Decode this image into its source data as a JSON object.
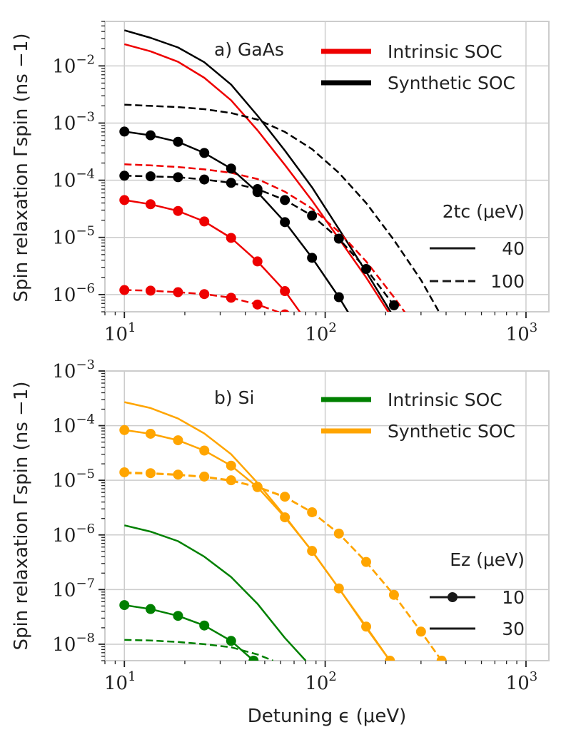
{
  "chart_data": [
    {
      "type": "line",
      "panel_label": "a) GaAs",
      "xlabel": "Detuning ϵ (μeV)",
      "ylabel": "Spin relaxation Γspin (ns −1)",
      "xscale": "log",
      "yscale": "log",
      "xlim": [
        8,
        1300
      ],
      "ylim": [
        5e-07,
        0.06
      ],
      "grid": true,
      "xticks": [
        10,
        100,
        1000
      ],
      "xtick_labels": [
        {
          "base": "10",
          "exp": "1"
        },
        {
          "base": "10",
          "exp": "2"
        },
        {
          "base": "10",
          "exp": "3"
        }
      ],
      "yticks": [
        1e-06,
        1e-05,
        0.0001,
        0.001,
        0.01
      ],
      "ytick_labels": [
        {
          "base": "10",
          "exp": "−6"
        },
        {
          "base": "10",
          "exp": "−5"
        },
        {
          "base": "10",
          "exp": "−4"
        },
        {
          "base": "10",
          "exp": "−3"
        },
        {
          "base": "10",
          "exp": "−2"
        }
      ],
      "legend_color": {
        "placement": "top-right",
        "entries": [
          {
            "label": "Intrinsic SOC",
            "color": "#ee0000"
          },
          {
            "label": "Synthetic SOC",
            "color": "#000000"
          }
        ]
      },
      "legend_style": {
        "placement": "center-right",
        "title": "2tc (μeV)",
        "entries": [
          {
            "label": "40",
            "style": "solid",
            "marker": false
          },
          {
            "label": "100",
            "style": "dashed",
            "marker": false
          }
        ]
      },
      "series": [
        {
          "color": "#000000",
          "style": "solid",
          "marker": false,
          "lw": 2.5,
          "x": [
            10,
            13.5,
            18.5,
            25,
            34,
            46,
            63,
            86,
            117,
            160,
            220
          ],
          "y": [
            0.042,
            0.031,
            0.021,
            0.0116,
            0.0047,
            0.00135,
            0.00033,
            7.5e-05,
            1.4e-05,
            2.5e-06,
            4e-07
          ]
        },
        {
          "color": "#ee0000",
          "style": "solid",
          "marker": false,
          "lw": 2.5,
          "x": [
            10,
            13.5,
            18.5,
            25,
            34,
            46,
            63,
            86,
            117,
            160,
            220
          ],
          "y": [
            0.024,
            0.018,
            0.0118,
            0.0062,
            0.0025,
            0.00075,
            0.000185,
            4.4e-05,
            9.5e-06,
            2e-06,
            3.5e-07
          ]
        },
        {
          "color": "#000000",
          "style": "dashed",
          "marker": false,
          "lw": 2.5,
          "x": [
            10,
            13.5,
            18.5,
            25,
            34,
            46,
            63,
            86,
            117,
            160,
            220,
            300,
            400
          ],
          "y": [
            0.0021,
            0.002,
            0.0019,
            0.00175,
            0.0015,
            0.00115,
            0.0007,
            0.00035,
            0.000135,
            4e-05,
            9e-06,
            1.8e-06,
            3e-07
          ]
        },
        {
          "color": "#ee0000",
          "style": "dashed",
          "marker": false,
          "lw": 2.5,
          "x": [
            10,
            13.5,
            18.5,
            25,
            34,
            46,
            63,
            86,
            117,
            160,
            220,
            300
          ],
          "y": [
            0.00019,
            0.000182,
            0.00017,
            0.000155,
            0.000135,
            0.000105,
            6.3e-05,
            3.2e-05,
            1.25e-05,
            3.8e-06,
            9e-07,
            2e-07
          ]
        },
        {
          "color": "#000000",
          "style": "solid",
          "marker": true,
          "lw": 2.5,
          "x": [
            10,
            13.5,
            18.5,
            25,
            34,
            46,
            63,
            86,
            117,
            160
          ],
          "y": [
            0.00071,
            0.00061,
            0.00047,
            0.0003,
            0.00016,
            6.2e-05,
            1.85e-05,
            4.4e-06,
            9e-07,
            1.5e-07
          ]
        },
        {
          "color": "#000000",
          "style": "dashed",
          "marker": true,
          "lw": 2.5,
          "x": [
            10,
            13.5,
            18.5,
            25,
            34,
            46,
            63,
            86,
            117,
            160,
            220
          ],
          "y": [
            0.00012,
            0.000117,
            0.000113,
            0.000103,
            9e-05,
            7e-05,
            4.5e-05,
            2.4e-05,
            9.5e-06,
            2.8e-06,
            6.5e-07
          ]
        },
        {
          "color": "#ee0000",
          "style": "solid",
          "marker": true,
          "lw": 2.5,
          "x": [
            10,
            13.5,
            18.5,
            25,
            34,
            46,
            63,
            86
          ],
          "y": [
            4.5e-05,
            3.8e-05,
            2.9e-05,
            1.9e-05,
            9.8e-06,
            3.8e-06,
            1.15e-06,
            2.5e-07
          ]
        },
        {
          "color": "#ee0000",
          "style": "dashed",
          "marker": true,
          "lw": 2.5,
          "x": [
            10,
            13.5,
            18.5,
            25,
            34,
            46,
            63,
            86
          ],
          "y": [
            1.2e-06,
            1.17e-06,
            1.1e-06,
            1.02e-06,
            8.8e-07,
            6.7e-07,
            4.5e-07,
            2.5e-07
          ]
        }
      ]
    },
    {
      "type": "line",
      "panel_label": "b) Si",
      "xlabel": "Detuning ϵ (μeV)",
      "ylabel": "Spin relaxation Γspin (ns −1)",
      "xscale": "log",
      "yscale": "log",
      "xlim": [
        8,
        1300
      ],
      "ylim": [
        5e-09,
        0.001
      ],
      "grid": true,
      "xticks": [
        10,
        100,
        1000
      ],
      "xtick_labels": [
        {
          "base": "10",
          "exp": "1"
        },
        {
          "base": "10",
          "exp": "2"
        },
        {
          "base": "10",
          "exp": "3"
        }
      ],
      "yticks": [
        1e-08,
        1e-07,
        1e-06,
        1e-05,
        0.0001,
        0.001
      ],
      "ytick_labels": [
        {
          "base": "10",
          "exp": "−8"
        },
        {
          "base": "10",
          "exp": "−7"
        },
        {
          "base": "10",
          "exp": "−6"
        },
        {
          "base": "10",
          "exp": "−5"
        },
        {
          "base": "10",
          "exp": "−4"
        },
        {
          "base": "10",
          "exp": "−3"
        }
      ],
      "legend_color": {
        "placement": "top-right",
        "entries": [
          {
            "label": "Intrinsic SOC",
            "color": "#008000"
          },
          {
            "label": "Synthetic SOC",
            "color": "#ffa500"
          }
        ]
      },
      "legend_style": {
        "placement": "center-right",
        "title": "Ez (μeV)",
        "entries": [
          {
            "label": "10",
            "style": "solid",
            "marker": true
          },
          {
            "label": "30",
            "style": "solid",
            "marker": false
          }
        ]
      },
      "series": [
        {
          "color": "#ffa500",
          "style": "solid",
          "marker": false,
          "lw": 2.5,
          "x": [
            10,
            13.5,
            18.5,
            25,
            34,
            46,
            63,
            86,
            117,
            160,
            210
          ],
          "y": [
            0.00027,
            0.00021,
            0.000135,
            7.2e-05,
            3e-05,
            9e-06,
            2.2e-06,
            5e-07,
            1.05e-07,
            2e-08,
            5e-09
          ]
        },
        {
          "color": "#ffa500",
          "style": "solid",
          "marker": true,
          "lw": 2.5,
          "x": [
            10,
            13.5,
            18.5,
            25,
            34,
            46,
            63,
            86,
            117,
            160,
            210
          ],
          "y": [
            8.3e-05,
            7.1e-05,
            5.4e-05,
            3.5e-05,
            1.85e-05,
            7.5e-06,
            2.1e-06,
            5.1e-07,
            1.05e-07,
            2.1e-08,
            5e-09
          ]
        },
        {
          "color": "#ffa500",
          "style": "dashed",
          "marker": false,
          "lw": 2.5,
          "x": [
            10,
            13.5,
            18.5,
            25,
            34,
            46,
            63,
            86,
            117,
            160,
            220,
            300,
            380
          ],
          "y": [
            1.35e-05,
            1.32e-05,
            1.25e-05,
            1.15e-05,
            9.8e-06,
            7.5e-06,
            4.9e-06,
            2.6e-06,
            1.05e-06,
            3.2e-07,
            8e-08,
            1.7e-08,
            5e-09
          ]
        },
        {
          "color": "#ffa500",
          "style": "dashed",
          "marker": true,
          "lw": 2.5,
          "x": [
            10,
            13.5,
            18.5,
            25,
            34,
            46,
            63,
            86,
            117,
            160,
            220,
            300,
            380
          ],
          "y": [
            1.4e-05,
            1.35e-05,
            1.27e-05,
            1.17e-05,
            1e-05,
            7.6e-06,
            5e-06,
            2.6e-06,
            1.06e-06,
            3.2e-07,
            8e-08,
            1.7e-08,
            5e-09
          ]
        },
        {
          "color": "#008000",
          "style": "solid",
          "marker": false,
          "lw": 2.5,
          "x": [
            10,
            13.5,
            18.5,
            25,
            34,
            46,
            63,
            80
          ],
          "y": [
            1.5e-06,
            1.15e-06,
            7.7e-07,
            4e-07,
            1.7e-07,
            5.5e-08,
            1.3e-08,
            5e-09
          ]
        },
        {
          "color": "#008000",
          "style": "solid",
          "marker": true,
          "lw": 2.5,
          "x": [
            10,
            13.5,
            18.5,
            25,
            34,
            44
          ],
          "y": [
            5.2e-08,
            4.4e-08,
            3.3e-08,
            2.2e-08,
            1.15e-08,
            5e-09
          ]
        },
        {
          "color": "#008000",
          "style": "dashed",
          "marker": false,
          "lw": 2.5,
          "x": [
            10,
            13.5,
            18.5,
            25,
            34,
            46,
            55
          ],
          "y": [
            1.2e-08,
            1.17e-08,
            1.1e-08,
            1e-08,
            8.8e-09,
            6.5e-09,
            5e-09
          ]
        }
      ]
    }
  ]
}
